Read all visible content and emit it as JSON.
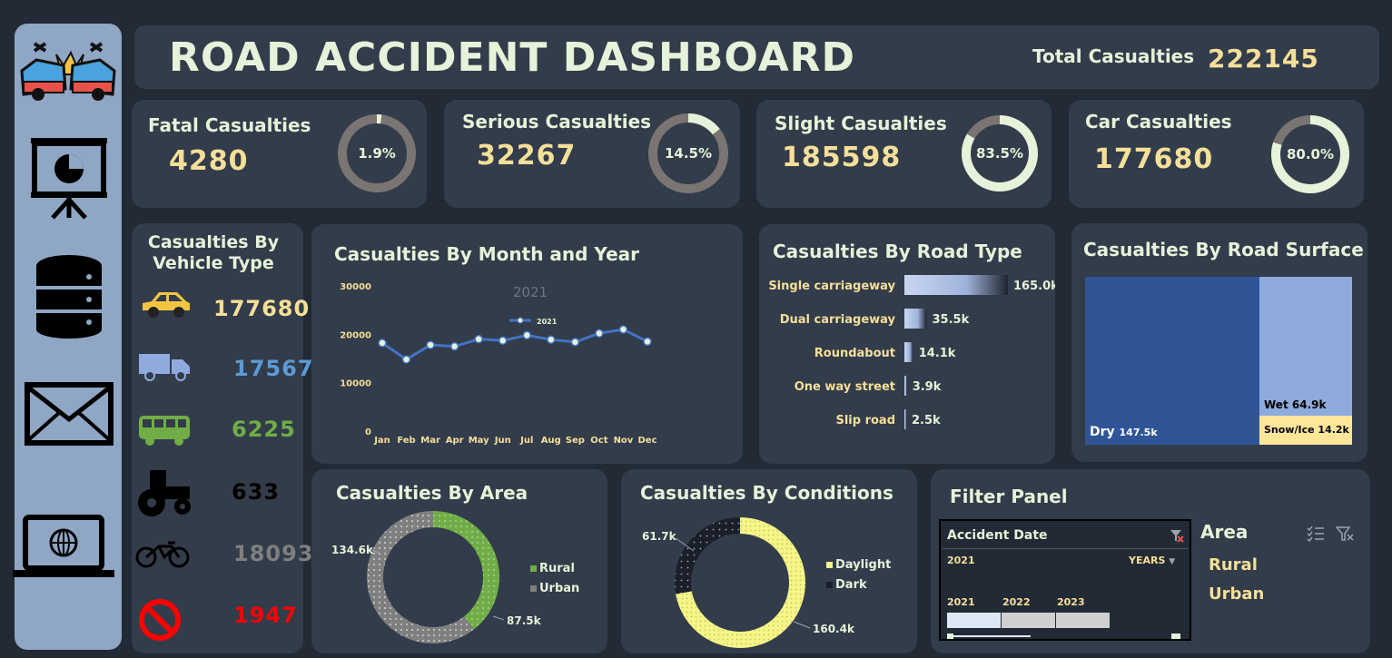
{
  "header": {
    "title": "ROAD ACCIDENT DASHBOARD",
    "total_label": "Total Casualties",
    "total_value": "222145"
  },
  "kpis": [
    {
      "label": "Fatal Casualties",
      "value": "4280",
      "pct_text": "1.9%",
      "fraction": 0.019
    },
    {
      "label": "Serious Casualties",
      "value": "32267",
      "pct_text": "14.5%",
      "fraction": 0.145
    },
    {
      "label": "Slight Casualties",
      "value": "185598",
      "pct_text": "83.5%",
      "fraction": 0.835
    },
    {
      "label": "Car Casualties",
      "value": "177680",
      "pct_text": "80.0%",
      "fraction": 0.8
    }
  ],
  "vehicle": {
    "title_line1": "Casualties By",
    "title_line2": "Vehicle Type",
    "items": [
      {
        "icon": "car-icon",
        "value": "177680",
        "color": "#f7df99"
      },
      {
        "icon": "truck-icon",
        "value": "17567",
        "color": "#5b9bd5"
      },
      {
        "icon": "bus-icon",
        "value": "6225",
        "color": "#70ad47"
      },
      {
        "icon": "tractor-icon",
        "value": "633",
        "color": "#000000"
      },
      {
        "icon": "motorcycle-icon",
        "value": "18093",
        "color": "#7f7f7f"
      },
      {
        "icon": "no-entry-icon",
        "value": "1947",
        "color": "#ff0000"
      }
    ]
  },
  "monthly": {
    "title": "Casualties By Month and Year",
    "year_watermark": "2021"
  },
  "road_type": {
    "title": "Casualties By Road Type",
    "items": [
      {
        "label": "Single carriageway",
        "value_text": "165.0k",
        "value": 165.0
      },
      {
        "label": "Dual carriageway",
        "value_text": "35.5k",
        "value": 35.5
      },
      {
        "label": "Roundabout",
        "value_text": "14.1k",
        "value": 14.1
      },
      {
        "label": "One way street",
        "value_text": "3.9k",
        "value": 3.9
      },
      {
        "label": "Slip road",
        "value_text": "2.5k",
        "value": 2.5
      }
    ]
  },
  "road_surface": {
    "title": "Casualties By Road Surface",
    "dry_label": "Dry",
    "dry_value": "147.5k",
    "wet_label": "Wet",
    "wet_value": "64.9k",
    "snow_label": "Snow/Ice",
    "snow_value": "14.2k"
  },
  "area": {
    "title": "Casualties By Area",
    "urban_value": "134.6k",
    "rural_value": "87.5k",
    "legend_rural": "Rural",
    "legend_urban": "Urban"
  },
  "conditions": {
    "title": "Casualties By Conditions",
    "dark_value": "61.7k",
    "daylight_value": "160.4k",
    "legend_daylight": "Daylight",
    "legend_dark": "Dark"
  },
  "filter": {
    "title": "Filter Panel",
    "date_title": "Accident Date",
    "date_selected": "2021",
    "granularity": "YEARS",
    "years": [
      "2021",
      "2022",
      "2023"
    ],
    "area_title": "Area",
    "area_options": [
      "Rural",
      "Urban"
    ]
  },
  "colors": {
    "background": "#222a35",
    "card": "#323c4a",
    "sidebar": "#8fa6c4",
    "accent_yellow": "#f7df99",
    "title_text": "#e6f2d9",
    "line": "#4472c4",
    "rural_green": "#70ad47",
    "urban_gray": "#7f7f7f",
    "daylight_yellow": "#f5f58a",
    "dark_black": "#1a1f29",
    "dry_blue": "#2f5597",
    "wet_blue": "#8faadc",
    "snow_yellow": "#ffe699"
  },
  "chart_data": [
    {
      "type": "line",
      "title": "Casualties By Month and Year",
      "x": [
        "Jan",
        "Feb",
        "Mar",
        "Apr",
        "May",
        "Jun",
        "Jul",
        "Aug",
        "Sep",
        "Oct",
        "Nov",
        "Dec"
      ],
      "series": [
        {
          "name": "2021",
          "values": [
            18200,
            14800,
            17800,
            17500,
            19000,
            18700,
            19800,
            18900,
            18400,
            20200,
            21000,
            18500
          ]
        }
      ],
      "ylim": [
        0,
        30000
      ],
      "yticks": [
        "0",
        "10000",
        "20000",
        "30000"
      ],
      "legend": "top-center"
    },
    {
      "type": "bar",
      "title": "Casualties By Road Type",
      "categories": [
        "Single carriageway",
        "Dual carriageway",
        "Roundabout",
        "One way street",
        "Slip road"
      ],
      "values": [
        165.0,
        35.5,
        14.1,
        3.9,
        2.5
      ]
    },
    {
      "type": "heatmap",
      "title": "Casualties By Road Surface",
      "categories": [
        "Dry",
        "Wet",
        "Snow/Ice"
      ],
      "values": [
        147.5,
        64.9,
        14.2
      ]
    },
    {
      "type": "pie",
      "title": "Casualties By Area",
      "categories": [
        "Rural",
        "Urban"
      ],
      "values": [
        87.5,
        134.6
      ]
    },
    {
      "type": "pie",
      "title": "Casualties By Conditions",
      "categories": [
        "Daylight",
        "Dark"
      ],
      "values": [
        160.4,
        61.7
      ]
    }
  ]
}
